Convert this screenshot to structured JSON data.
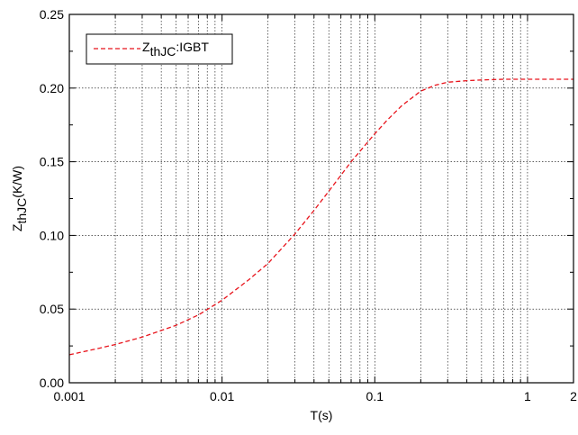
{
  "chart_data": {
    "type": "line",
    "xlabel": "T(s)",
    "ylabel": {
      "main": "Z",
      "sub": "thJC",
      "unit": "(K/W)"
    },
    "xscale": "log",
    "xlim": [
      0.001,
      2
    ],
    "ylim": [
      0.0,
      0.25
    ],
    "x_tick_values": [
      0.001,
      0.01,
      0.1,
      1,
      2
    ],
    "x_tick_labels": [
      "0.001",
      "0.01",
      "0.1",
      "1",
      "2"
    ],
    "y_ticks": [
      "0.00",
      "0.05",
      "0.10",
      "0.15",
      "0.20",
      "0.25"
    ],
    "grid": true,
    "legend_position": "top-left",
    "series": [
      {
        "legend": {
          "main": "Z",
          "sub": "thJC",
          "rest": ":IGBT"
        },
        "color": "#e8141c",
        "style": "dashed",
        "x": [
          0.001,
          0.0015,
          0.002,
          0.003,
          0.005,
          0.007,
          0.01,
          0.015,
          0.02,
          0.03,
          0.04,
          0.05,
          0.07,
          0.1,
          0.12,
          0.15,
          0.2,
          0.25,
          0.3,
          0.4,
          0.5,
          0.7,
          1,
          1.5,
          2
        ],
        "y": [
          0.019,
          0.023,
          0.026,
          0.031,
          0.039,
          0.046,
          0.056,
          0.07,
          0.081,
          0.101,
          0.117,
          0.13,
          0.15,
          0.169,
          0.178,
          0.188,
          0.198,
          0.202,
          0.204,
          0.205,
          0.2055,
          0.206,
          0.206,
          0.206,
          0.206
        ]
      }
    ]
  }
}
